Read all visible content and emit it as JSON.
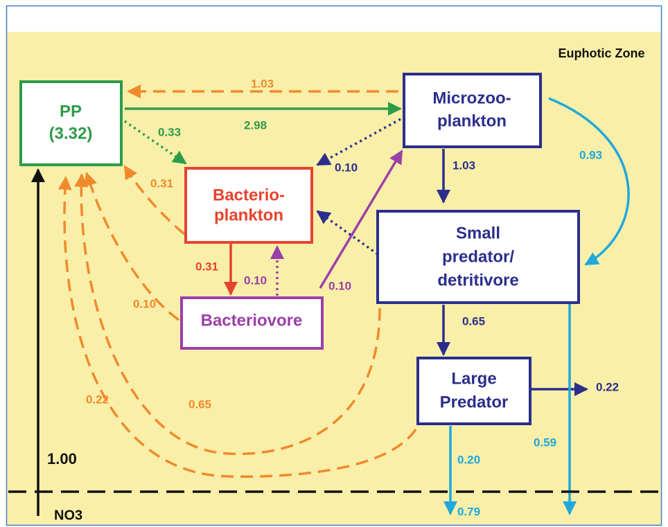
{
  "zone_label": "Euphotic Zone",
  "nodes": [
    {
      "lines": [
        "PP",
        "(3.32)"
      ]
    },
    {
      "lines": [
        "Microzoo-",
        "plankton"
      ]
    },
    {
      "lines": [
        "Bacterio-",
        "plankton"
      ]
    },
    {
      "lines": [
        "Small",
        "predator/",
        "detritivore"
      ]
    },
    {
      "lines": [
        "Bacteriovore"
      ]
    },
    {
      "lines": [
        "Large",
        "Predator"
      ]
    }
  ],
  "flows": [
    "1.03",
    "2.98",
    "0.33",
    "0.10",
    "1.03",
    "0.93",
    "0.31",
    "0.31",
    "0.10",
    "0.10",
    "0.10",
    "0.65",
    "0.22",
    "0.22",
    "0.65",
    "0.59",
    "0.20",
    "0.79"
  ],
  "boundary": {
    "upwelling": "1.00",
    "nutrient": "NO3"
  }
}
